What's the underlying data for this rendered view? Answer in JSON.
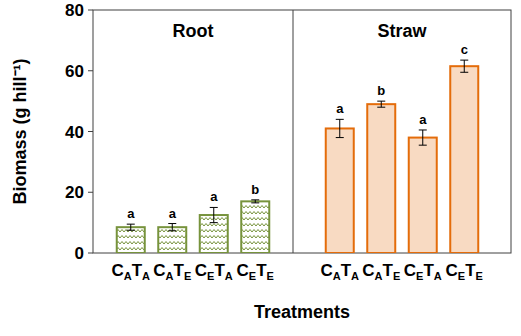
{
  "chart_data": [
    {
      "type": "bar",
      "title": "Root",
      "y_label": "Biomass (g hill⁻¹)",
      "x_label": "Treatments",
      "categories": [
        "CATA",
        "CATE",
        "CETA",
        "CETE"
      ],
      "values": [
        8.5,
        8.5,
        12.5,
        17
      ],
      "errors": [
        1,
        1.2,
        2.5,
        0.5
      ],
      "annotations": [
        "a",
        "a",
        "a",
        "b"
      ],
      "color": "#77933c",
      "ylim": [
        0,
        80
      ],
      "yticks": [
        0,
        20,
        40,
        60,
        80
      ]
    },
    {
      "type": "bar",
      "title": "Straw",
      "categories": [
        "CATA",
        "CATE",
        "CETA",
        "CETE"
      ],
      "values": [
        41,
        49,
        38,
        61.5
      ],
      "errors": [
        3,
        1,
        2.5,
        2
      ],
      "annotations": [
        "a",
        "b",
        "a",
        "c"
      ],
      "color": "#e46c0a",
      "ylim": [
        0,
        80
      ]
    }
  ]
}
